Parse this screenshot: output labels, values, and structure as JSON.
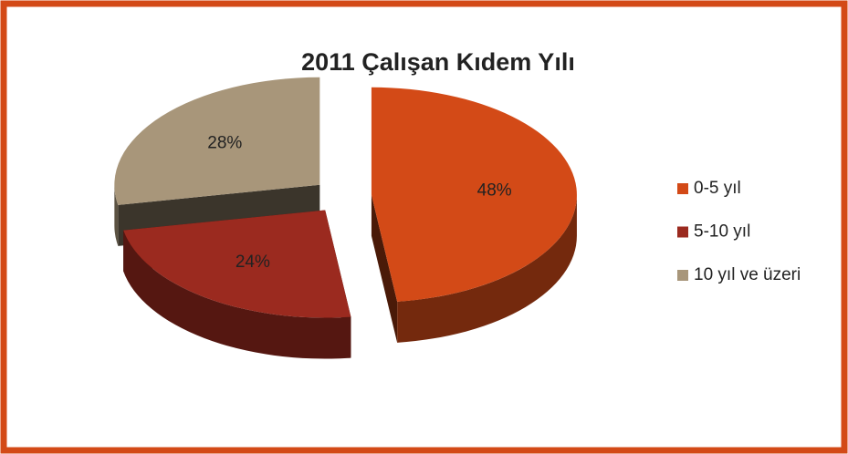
{
  "chart_data": {
    "type": "pie3d",
    "title": "2011 Çalışan Kıdem Yılı",
    "categories": [
      "0-5 yıl",
      "5-10 yıl",
      "10 yıl ve üzeri"
    ],
    "values": [
      48,
      24,
      28
    ],
    "value_labels": [
      "48%",
      "24%",
      "28%"
    ],
    "colors": [
      "#d34a17",
      "#9b2a1f",
      "#a8967a"
    ],
    "legend": "right"
  }
}
